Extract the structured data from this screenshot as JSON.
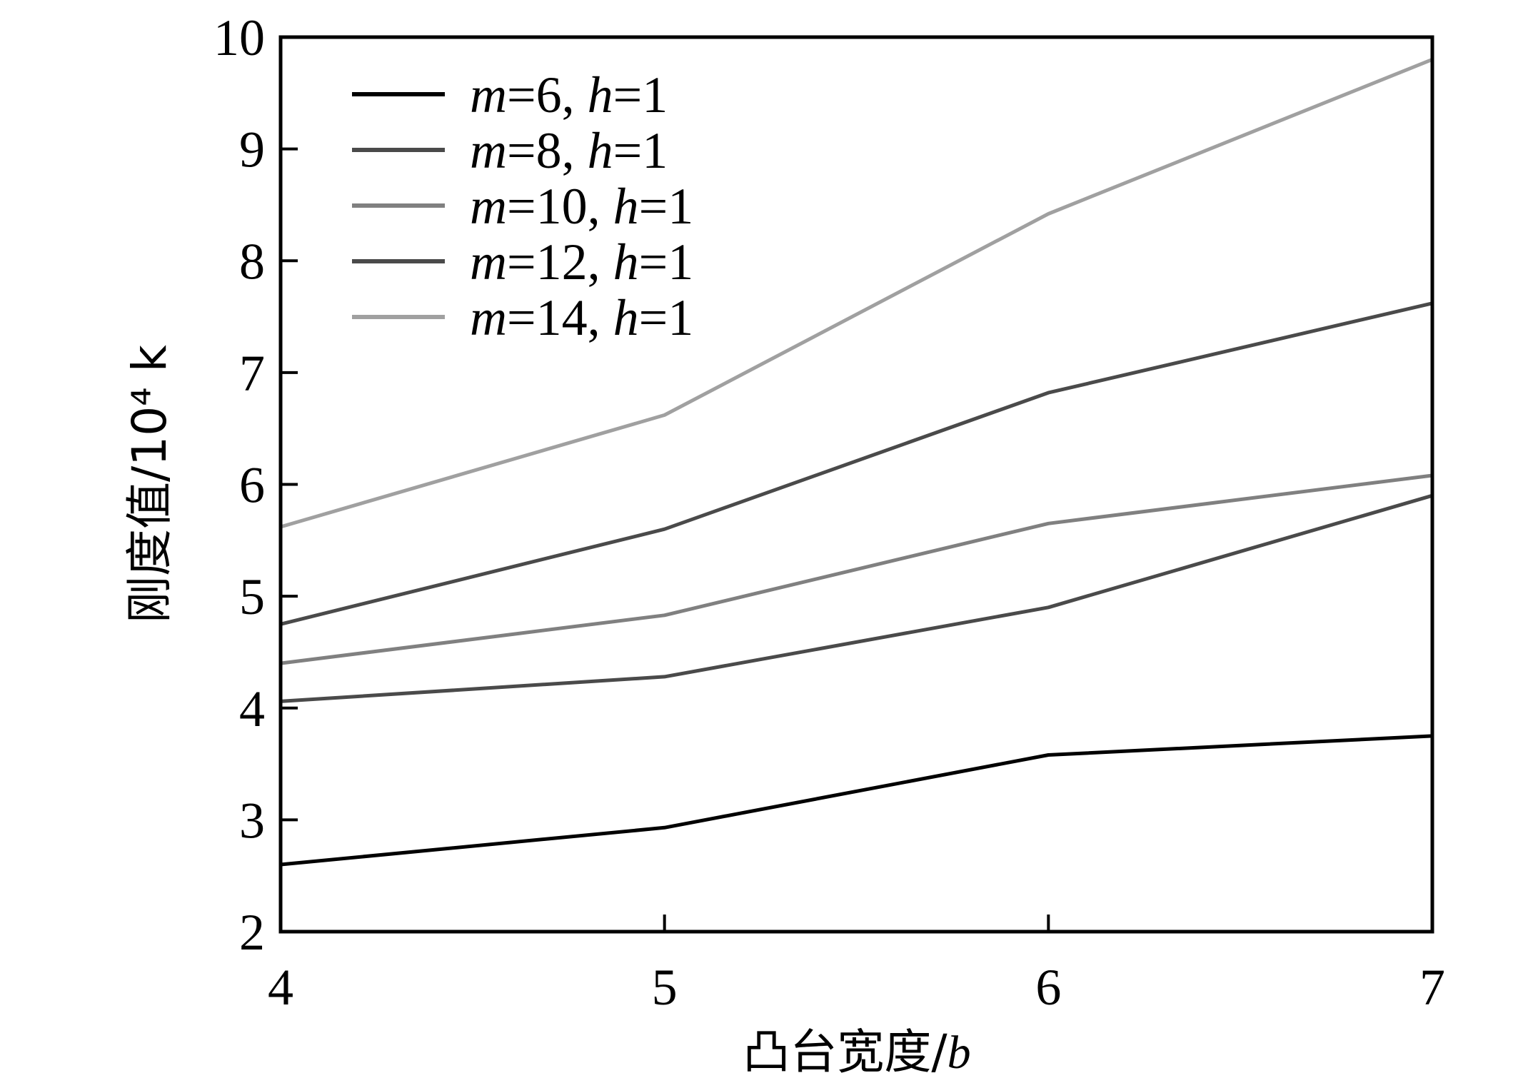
{
  "chart_data": {
    "type": "line",
    "title": "",
    "xlabel": "凸台宽度/b",
    "ylabel": "刚度值/10⁴ k",
    "x": [
      4,
      5,
      6,
      7
    ],
    "xlim": [
      4,
      7
    ],
    "ylim": [
      2,
      10
    ],
    "xticks": [
      4,
      5,
      6,
      7
    ],
    "yticks": [
      2,
      3,
      4,
      5,
      6,
      7,
      8,
      9,
      10
    ],
    "grid": false,
    "legend_position": "top-left",
    "series": [
      {
        "name": "m=6, h=1",
        "values": [
          2.6,
          2.93,
          3.58,
          3.75
        ],
        "color": "#000000"
      },
      {
        "name": "m=8, h=1",
        "values": [
          4.06,
          4.28,
          4.9,
          5.9
        ],
        "color": "#4a4a4a"
      },
      {
        "name": "m=10, h=1",
        "values": [
          4.4,
          4.83,
          5.65,
          6.08
        ],
        "color": "#808080"
      },
      {
        "name": "m=12, h=1",
        "values": [
          4.75,
          5.6,
          6.82,
          7.62
        ],
        "color": "#4a4a4a"
      },
      {
        "name": "m=14, h=1",
        "values": [
          5.62,
          6.62,
          8.42,
          9.8
        ],
        "color": "#a0a0a0"
      }
    ]
  }
}
